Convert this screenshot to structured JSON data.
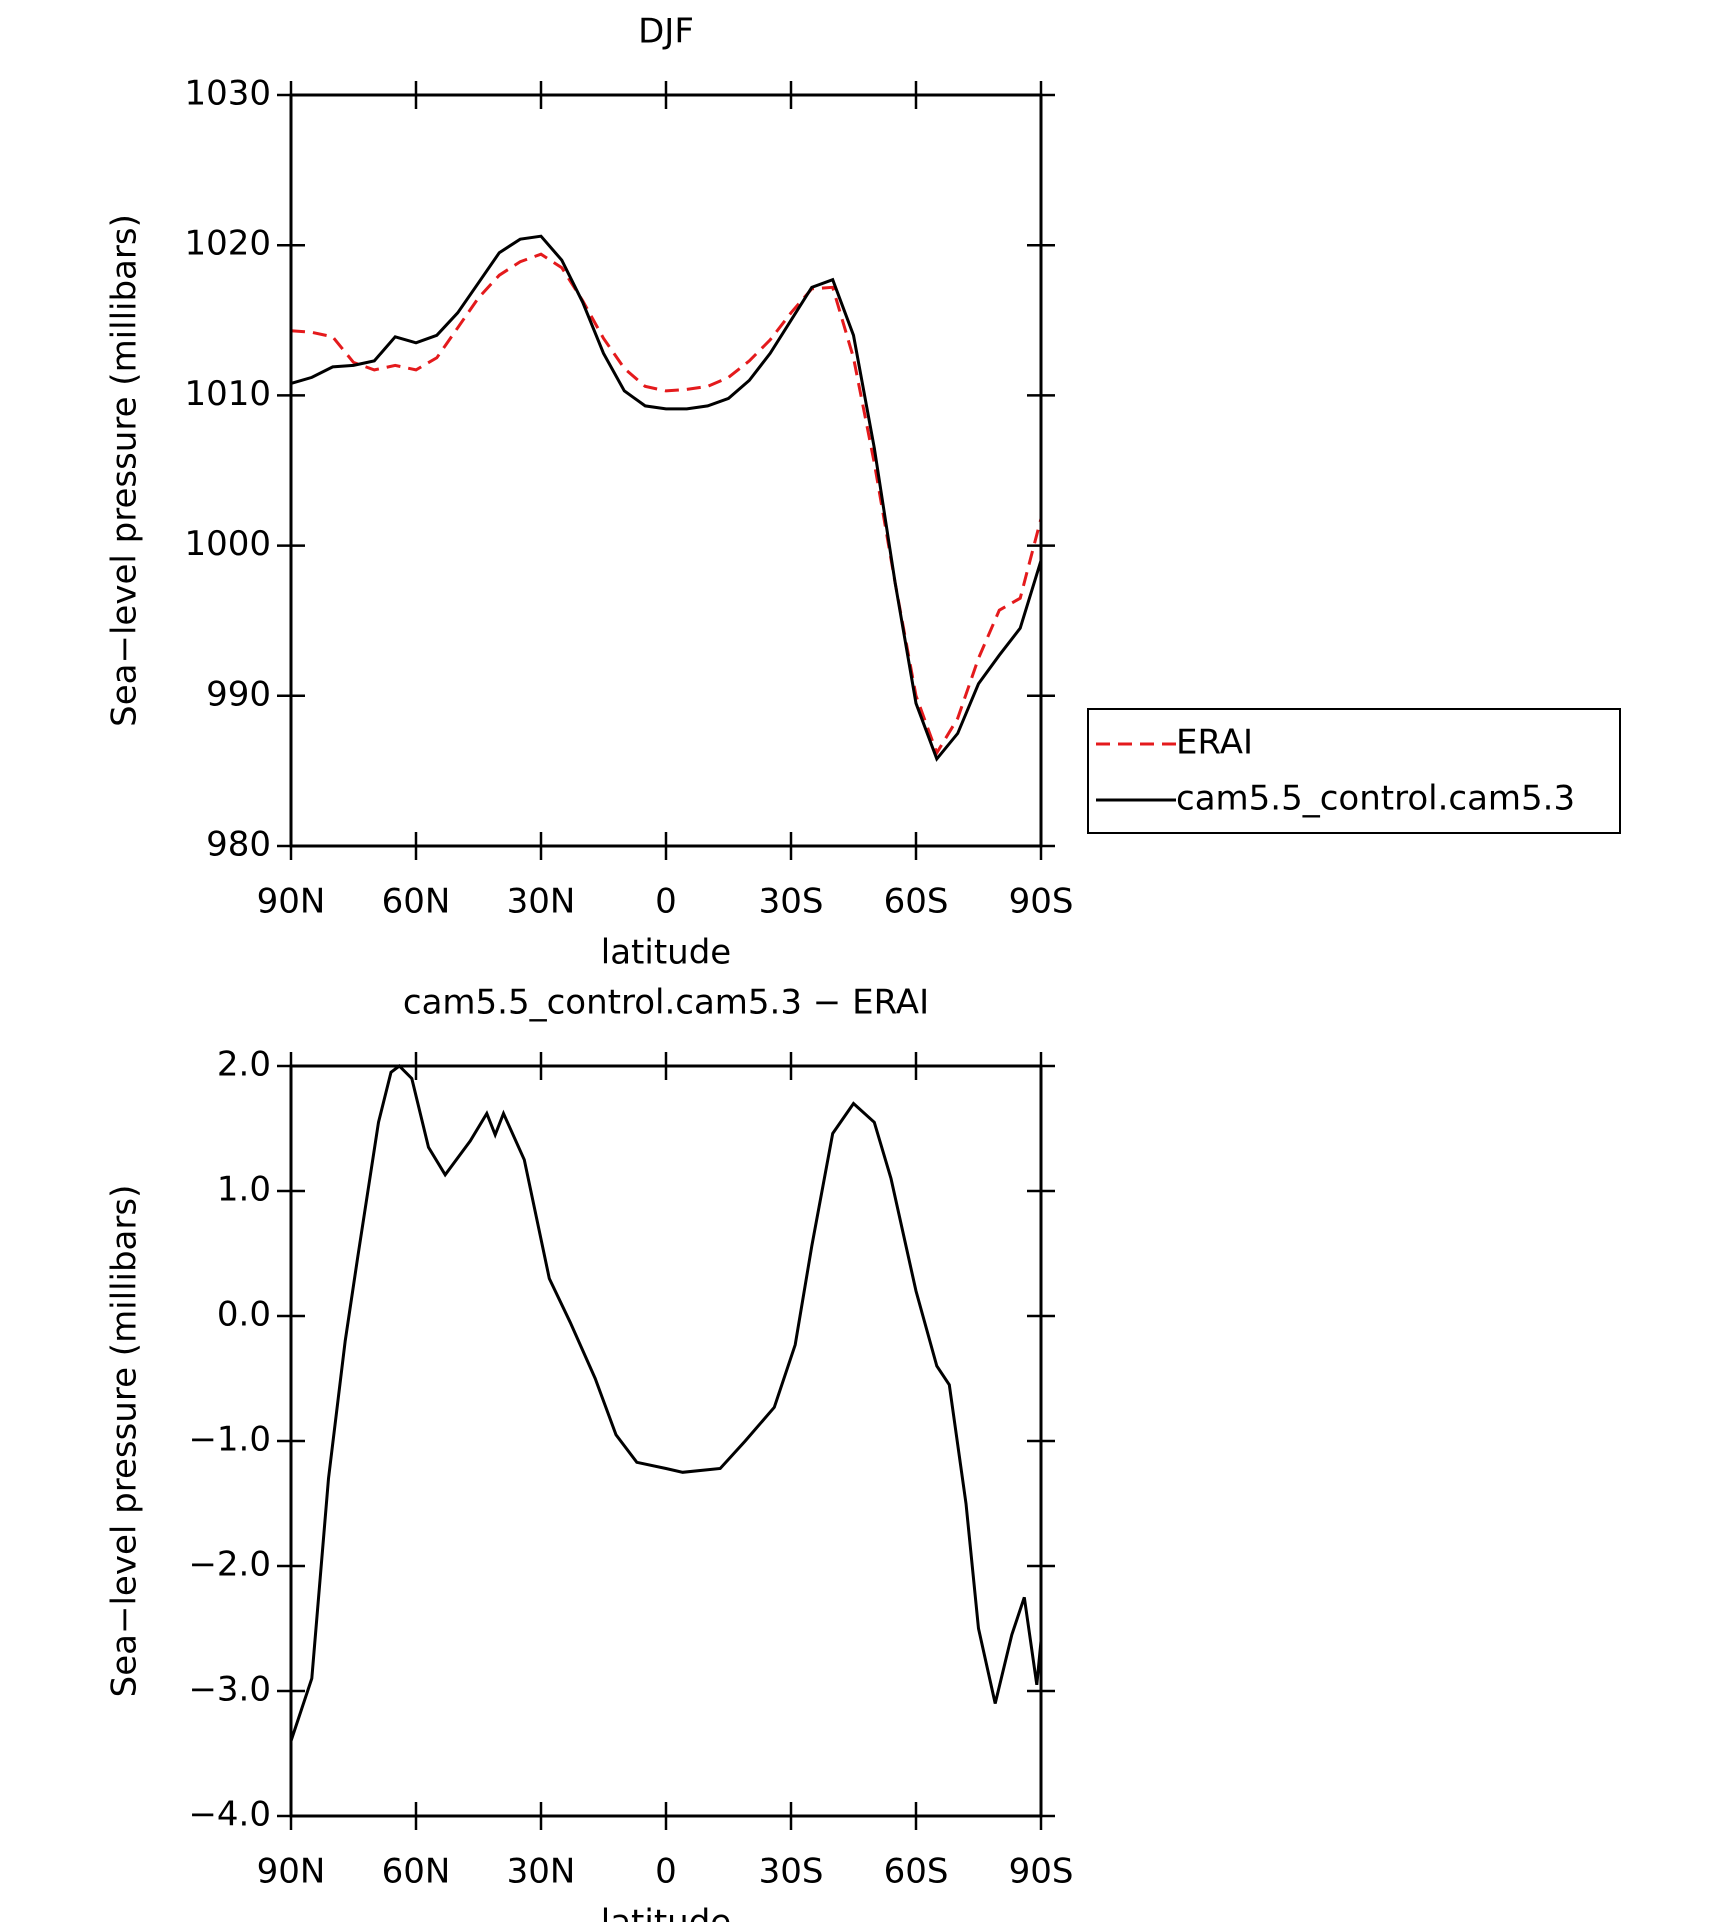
{
  "chart_data": [
    {
      "type": "line",
      "title": "DJF",
      "xlabel": "latitude",
      "ylabel": "Sea−level pressure (millibars)",
      "x": [
        90,
        85,
        80,
        75,
        70,
        65,
        60,
        55,
        50,
        45,
        40,
        35,
        30,
        25,
        20,
        15,
        10,
        5,
        0,
        -5,
        -10,
        -15,
        -20,
        -25,
        -30,
        -35,
        -40,
        -45,
        -50,
        -55,
        -60,
        -65,
        -70,
        -75,
        -80,
        -85,
        -90
      ],
      "series": [
        {
          "name": "ERAI",
          "color": "#e41a1c",
          "linestyle": "dashed",
          "values": [
            1014.3,
            1014.2,
            1013.9,
            1012.2,
            1011.7,
            1012.0,
            1011.7,
            1012.5,
            1014.5,
            1016.5,
            1018.0,
            1018.9,
            1019.4,
            1018.5,
            1016.3,
            1013.8,
            1011.8,
            1010.6,
            1010.3,
            1010.4,
            1010.6,
            1011.2,
            1012.3,
            1013.7,
            1015.5,
            1017.1,
            1017.2,
            1012.5,
            1005.5,
            997.5,
            990.0,
            986.2,
            988.5,
            992.5,
            995.7,
            996.5,
            1001.8
          ]
        },
        {
          "name": "cam5.5_control.cam5.3",
          "color": "#000000",
          "linestyle": "solid",
          "values": [
            1010.8,
            1011.2,
            1011.9,
            1012.0,
            1012.3,
            1013.9,
            1013.5,
            1014.0,
            1015.5,
            1017.5,
            1019.5,
            1020.4,
            1020.6,
            1019.0,
            1016.2,
            1012.8,
            1010.3,
            1009.3,
            1009.1,
            1009.1,
            1009.3,
            1009.8,
            1011.0,
            1012.8,
            1015.0,
            1017.2,
            1017.7,
            1014.0,
            1006.5,
            997.5,
            989.5,
            985.8,
            987.5,
            990.8,
            992.7,
            994.5,
            999.0
          ]
        }
      ],
      "xlim": [
        90,
        -90
      ],
      "xticks": [
        {
          "value": 90,
          "label": "90N"
        },
        {
          "value": 60,
          "label": "60N"
        },
        {
          "value": 30,
          "label": "30N"
        },
        0,
        {
          "value": -30,
          "label": "30S"
        },
        {
          "value": -60,
          "label": "60S"
        },
        {
          "value": -90,
          "label": "90S"
        }
      ],
      "ylim": [
        980,
        1030
      ],
      "yticks": [
        980,
        990,
        1000,
        1010,
        1020,
        1030
      ],
      "legend": "outside-right"
    },
    {
      "type": "line",
      "title": "cam5.5_control.cam5.3 − ERAI",
      "xlabel": "latitude",
      "ylabel": "Sea−level pressure (millibars)",
      "x": [
        90,
        85,
        81,
        77,
        74,
        69,
        66,
        64,
        61,
        57,
        53,
        47,
        43,
        41,
        39,
        34,
        28,
        23,
        17,
        12,
        7,
        0,
        -4,
        -13,
        -19,
        -26,
        -31,
        -35,
        -40,
        -45,
        -50,
        -54,
        -60,
        -65,
        -68,
        -72,
        -75,
        -79,
        -83,
        -86,
        -89,
        -90
      ],
      "values": [
        -3.4,
        -2.9,
        -1.3,
        -0.2,
        0.47,
        1.55,
        1.95,
        2.0,
        1.9,
        1.35,
        1.13,
        1.4,
        1.62,
        1.45,
        1.62,
        1.25,
        0.3,
        -0.05,
        -0.5,
        -0.95,
        -1.17,
        -1.22,
        -1.25,
        -1.22,
        -1.0,
        -0.73,
        -0.23,
        0.56,
        1.46,
        1.7,
        1.55,
        1.1,
        0.2,
        -0.4,
        -0.55,
        -1.5,
        -2.5,
        -3.1,
        -2.55,
        -2.25,
        -2.95,
        -2.6
      ],
      "color": "#000000",
      "xlim": [
        90,
        -90
      ],
      "xticks": [
        {
          "value": 90,
          "label": "90N"
        },
        {
          "value": 60,
          "label": "60N"
        },
        {
          "value": 30,
          "label": "30N"
        },
        0,
        {
          "value": -30,
          "label": "30S"
        },
        {
          "value": -60,
          "label": "60S"
        },
        {
          "value": -90,
          "label": "90S"
        }
      ],
      "ylim": [
        -4,
        2
      ],
      "yticks": [
        {
          "value": -4,
          "label": "−4.0"
        },
        {
          "value": -3,
          "label": "−3.0"
        },
        {
          "value": -2,
          "label": "−2.0"
        },
        {
          "value": -1,
          "label": "−1.0"
        },
        {
          "value": 0,
          "label": "0.0"
        },
        {
          "value": 1,
          "label": "1.0"
        },
        {
          "value": 2,
          "label": "2.0"
        }
      ]
    }
  ]
}
